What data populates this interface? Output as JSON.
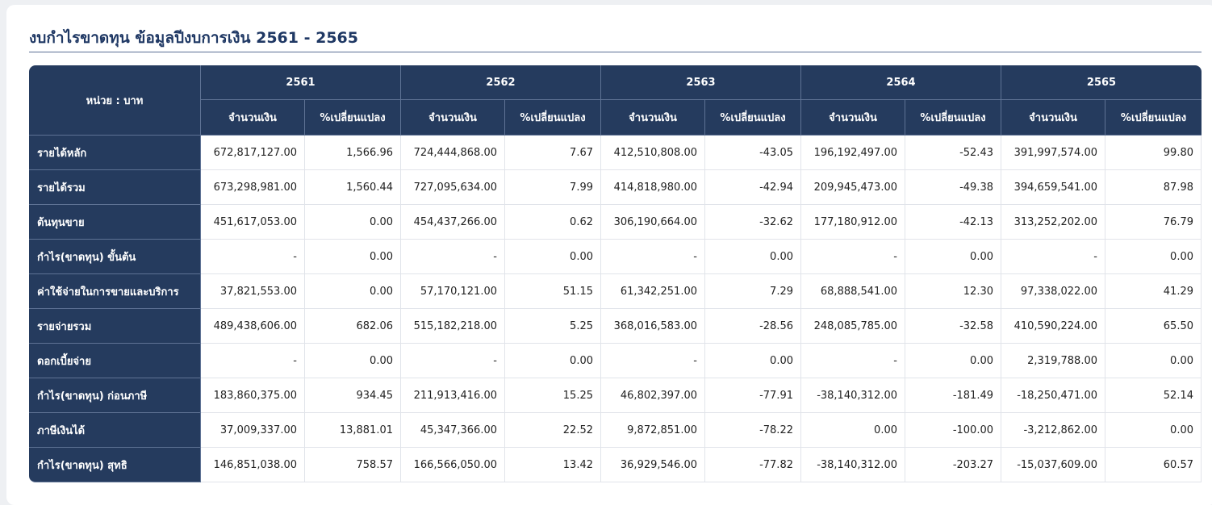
{
  "title": "งบกำไรขาดทุน ข้อมูลปีงบการเงิน 2561 - 2565",
  "unit_label": "หน่วย : บาท",
  "years": [
    "2561",
    "2562",
    "2563",
    "2564",
    "2565"
  ],
  "sub_headers": {
    "amount": "จำนวนเงิน",
    "pct_change": "%เปลี่ยนแปลง"
  },
  "rows": [
    {
      "label": "รายได้หลัก",
      "cells": [
        "672,817,127.00",
        "1,566.96",
        "724,444,868.00",
        "7.67",
        "412,510,808.00",
        "-43.05",
        "196,192,497.00",
        "-52.43",
        "391,997,574.00",
        "99.80"
      ]
    },
    {
      "label": "รายได้รวม",
      "cells": [
        "673,298,981.00",
        "1,560.44",
        "727,095,634.00",
        "7.99",
        "414,818,980.00",
        "-42.94",
        "209,945,473.00",
        "-49.38",
        "394,659,541.00",
        "87.98"
      ]
    },
    {
      "label": "ต้นทุนขาย",
      "cells": [
        "451,617,053.00",
        "0.00",
        "454,437,266.00",
        "0.62",
        "306,190,664.00",
        "-32.62",
        "177,180,912.00",
        "-42.13",
        "313,252,202.00",
        "76.79"
      ]
    },
    {
      "label": "กำไร(ขาดทุน) ขั้นต้น",
      "cells": [
        "-",
        "0.00",
        "-",
        "0.00",
        "-",
        "0.00",
        "-",
        "0.00",
        "-",
        "0.00"
      ]
    },
    {
      "label": "ค่าใช้จ่ายในการขายและบริการ",
      "cells": [
        "37,821,553.00",
        "0.00",
        "57,170,121.00",
        "51.15",
        "61,342,251.00",
        "7.29",
        "68,888,541.00",
        "12.30",
        "97,338,022.00",
        "41.29"
      ]
    },
    {
      "label": "รายจ่ายรวม",
      "cells": [
        "489,438,606.00",
        "682.06",
        "515,182,218.00",
        "5.25",
        "368,016,583.00",
        "-28.56",
        "248,085,785.00",
        "-32.58",
        "410,590,224.00",
        "65.50"
      ]
    },
    {
      "label": "ดอกเบี้ยจ่าย",
      "cells": [
        "-",
        "0.00",
        "-",
        "0.00",
        "-",
        "0.00",
        "-",
        "0.00",
        "2,319,788.00",
        "0.00"
      ]
    },
    {
      "label": "กำไร(ขาดทุน) ก่อนภาษี",
      "cells": [
        "183,860,375.00",
        "934.45",
        "211,913,416.00",
        "15.25",
        "46,802,397.00",
        "-77.91",
        "-38,140,312.00",
        "-181.49",
        "-18,250,471.00",
        "52.14"
      ]
    },
    {
      "label": "ภาษีเงินได้",
      "cells": [
        "37,009,337.00",
        "13,881.01",
        "45,347,366.00",
        "22.52",
        "9,872,851.00",
        "-78.22",
        "0.00",
        "-100.00",
        "-3,212,862.00",
        "0.00"
      ]
    },
    {
      "label": "กำไร(ขาดทุน) สุทธิ",
      "cells": [
        "146,851,038.00",
        "758.57",
        "166,566,050.00",
        "13.42",
        "36,929,546.00",
        "-77.82",
        "-38,140,312.00",
        "-203.27",
        "-15,037,609.00",
        "60.57"
      ]
    }
  ]
}
